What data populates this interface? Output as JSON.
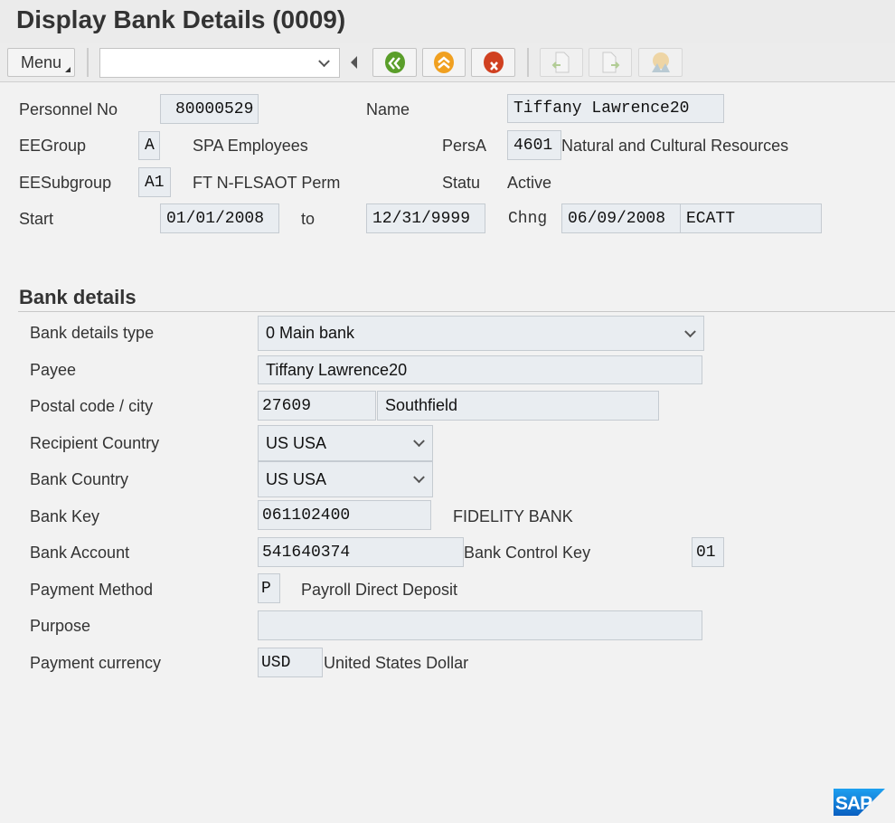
{
  "title": "Display Bank Details (0009)",
  "toolbar": {
    "menu_label": "Menu",
    "command_value": "",
    "icons": [
      "back-icon",
      "exit-icon",
      "cancel-icon",
      "previous-record-icon",
      "next-record-icon",
      "overview-icon"
    ]
  },
  "header": {
    "personnel_no_label": "Personnel No",
    "personnel_no": "80000529",
    "name_label": "Name",
    "name": "Tiffany Lawrence20",
    "eegroup_label": "EEGroup",
    "eegroup": "A",
    "eegroup_text": "SPA Employees",
    "persa_label": "PersA",
    "persa": "4601",
    "persa_text": "Natural and Cultural Resources",
    "eesubgroup_label": "EESubgroup",
    "eesubgroup": "A1",
    "eesubgroup_text": "FT N-FLSAOT Perm",
    "status_label": "Statu",
    "status": "Active",
    "start_label": "Start",
    "start": "01/01/2008",
    "to_label": "to",
    "end": "12/31/9999",
    "changed_label": "Chng",
    "changed_date": "06/09/2008",
    "changed_by": "ECATT"
  },
  "bank": {
    "heading": "Bank details",
    "type_label": "Bank details type",
    "type": "0 Main bank",
    "payee_label": "Payee",
    "payee": "Tiffany Lawrence20",
    "postal_label": "Postal code / city",
    "postal_code": "27609",
    "city": "Southfield",
    "recipient_country_label": "Recipient Country",
    "recipient_country": "US USA",
    "bank_country_label": "Bank Country",
    "bank_country": "US USA",
    "bank_key_label": "Bank Key",
    "bank_key": "061102400",
    "bank_name": "FIDELITY BANK",
    "account_label": "Bank Account",
    "account": "541640374",
    "control_key_label": "Bank Control Key",
    "control_key": "01",
    "payment_method_label": "Payment Method",
    "payment_method": "P",
    "payment_method_text": "Payroll Direct Deposit",
    "purpose_label": "Purpose",
    "purpose": "",
    "currency_label": "Payment currency",
    "currency": "USD",
    "currency_text": "United States Dollar"
  },
  "logo": "SAP",
  "colors": {
    "logo_blue": "#1a8fe0",
    "field_bg": "#e9edf1"
  }
}
